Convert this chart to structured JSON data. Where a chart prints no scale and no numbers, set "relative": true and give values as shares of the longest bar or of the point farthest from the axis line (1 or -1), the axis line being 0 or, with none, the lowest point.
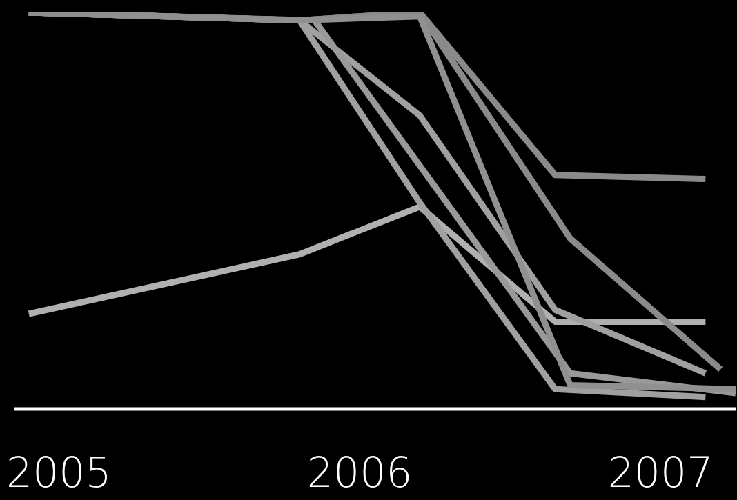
{
  "chart_data": {
    "type": "line",
    "relative": true,
    "x": [
      2004.9,
      2005.8,
      2006.2,
      2006.65,
      2007.15
    ],
    "xlim": [
      2004.85,
      2007.25
    ],
    "xticks": [
      2005,
      2006,
      2007
    ],
    "series": [
      {
        "color": "#b0b0b0",
        "values": [
          0.24,
          0.39,
          0.51,
          0.22,
          0.22
        ]
      },
      {
        "color": "#a0a0a0",
        "values": [
          1.0,
          0.98,
          0.74,
          0.25,
          0.09
        ]
      },
      {
        "color": "#a0a0a0",
        "values": [
          1.0,
          0.98,
          0.52,
          0.05,
          0.03
        ]
      },
      {
        "color": "#999999",
        "x": [
          2004.9,
          2005.85,
          2006.7,
          2007.25
        ],
        "values": [
          1.0,
          0.98,
          0.09,
          0.04
        ]
      },
      {
        "color": "#8a8a8a",
        "values": [
          1.0,
          0.98,
          1.0,
          0.59,
          0.58
        ]
      },
      {
        "color": "#8a8a8a",
        "x": [
          2004.9,
          2005.8,
          2006.2,
          2006.7,
          2007.2
        ],
        "values": [
          1.0,
          0.98,
          1.0,
          0.43,
          0.1
        ]
      },
      {
        "color": "#909090",
        "x": [
          2004.9,
          2005.8,
          2006.2,
          2006.7,
          2007.25
        ],
        "values": [
          1.0,
          0.98,
          0.99,
          0.06,
          0.05
        ]
      }
    ]
  }
}
